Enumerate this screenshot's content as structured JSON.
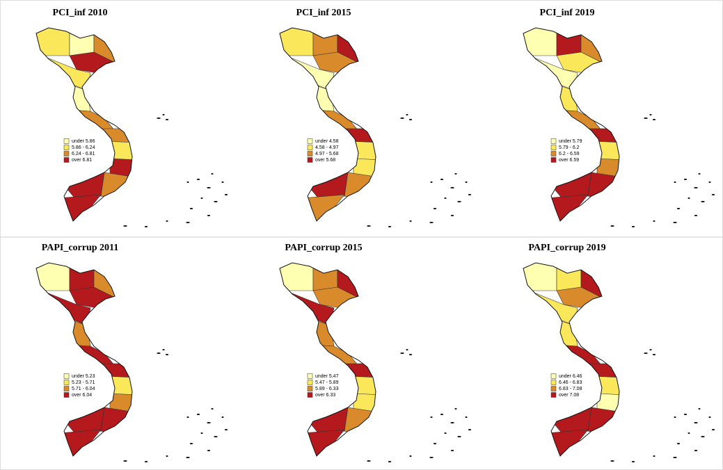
{
  "legend_colors": [
    "#ffffb2",
    "#fbe85a",
    "#d98a2b",
    "#b3191d"
  ],
  "panels": [
    {
      "title": "PCI_inf 2010",
      "legend": [
        "under 5.86",
        "5.86 - 6.24",
        "6.24 - 6.81",
        "over 6.81"
      ]
    },
    {
      "title": "PCI_inf 2015",
      "legend": [
        "under 4.58",
        "4.58 - 4.97",
        "4.97 - 5.68",
        "over 5.68"
      ]
    },
    {
      "title": "PCI_inf 2019",
      "legend": [
        "under 5.79",
        "5.79 - 6.2",
        "6.2 - 6.59",
        "over 6.59"
      ]
    },
    {
      "title": "PAPI_corrup 2011",
      "legend": [
        "under 5.23",
        "5.23 - 5.71",
        "5.71 - 6.04",
        "over 6.04"
      ]
    },
    {
      "title": "PAPI_corrup 2015",
      "legend": [
        "under 5.47",
        "5.47 - 5.89",
        "5.89 - 6.33",
        "over 6.33"
      ]
    },
    {
      "title": "PAPI_corrup 2019",
      "legend": [
        "under 6.46",
        "6.46 - 6.83",
        "6.83 - 7.08",
        "over 7.08"
      ]
    }
  ]
}
